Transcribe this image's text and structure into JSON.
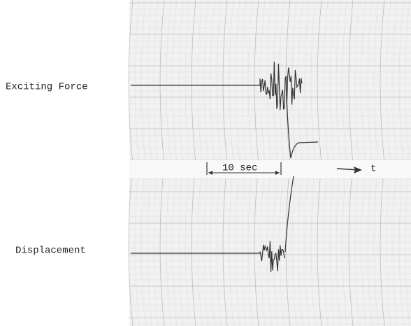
{
  "traces": {
    "top": "Exciting Force",
    "bottom": "Displacement"
  },
  "time_scale": "10 sec",
  "time_axis": "t"
}
